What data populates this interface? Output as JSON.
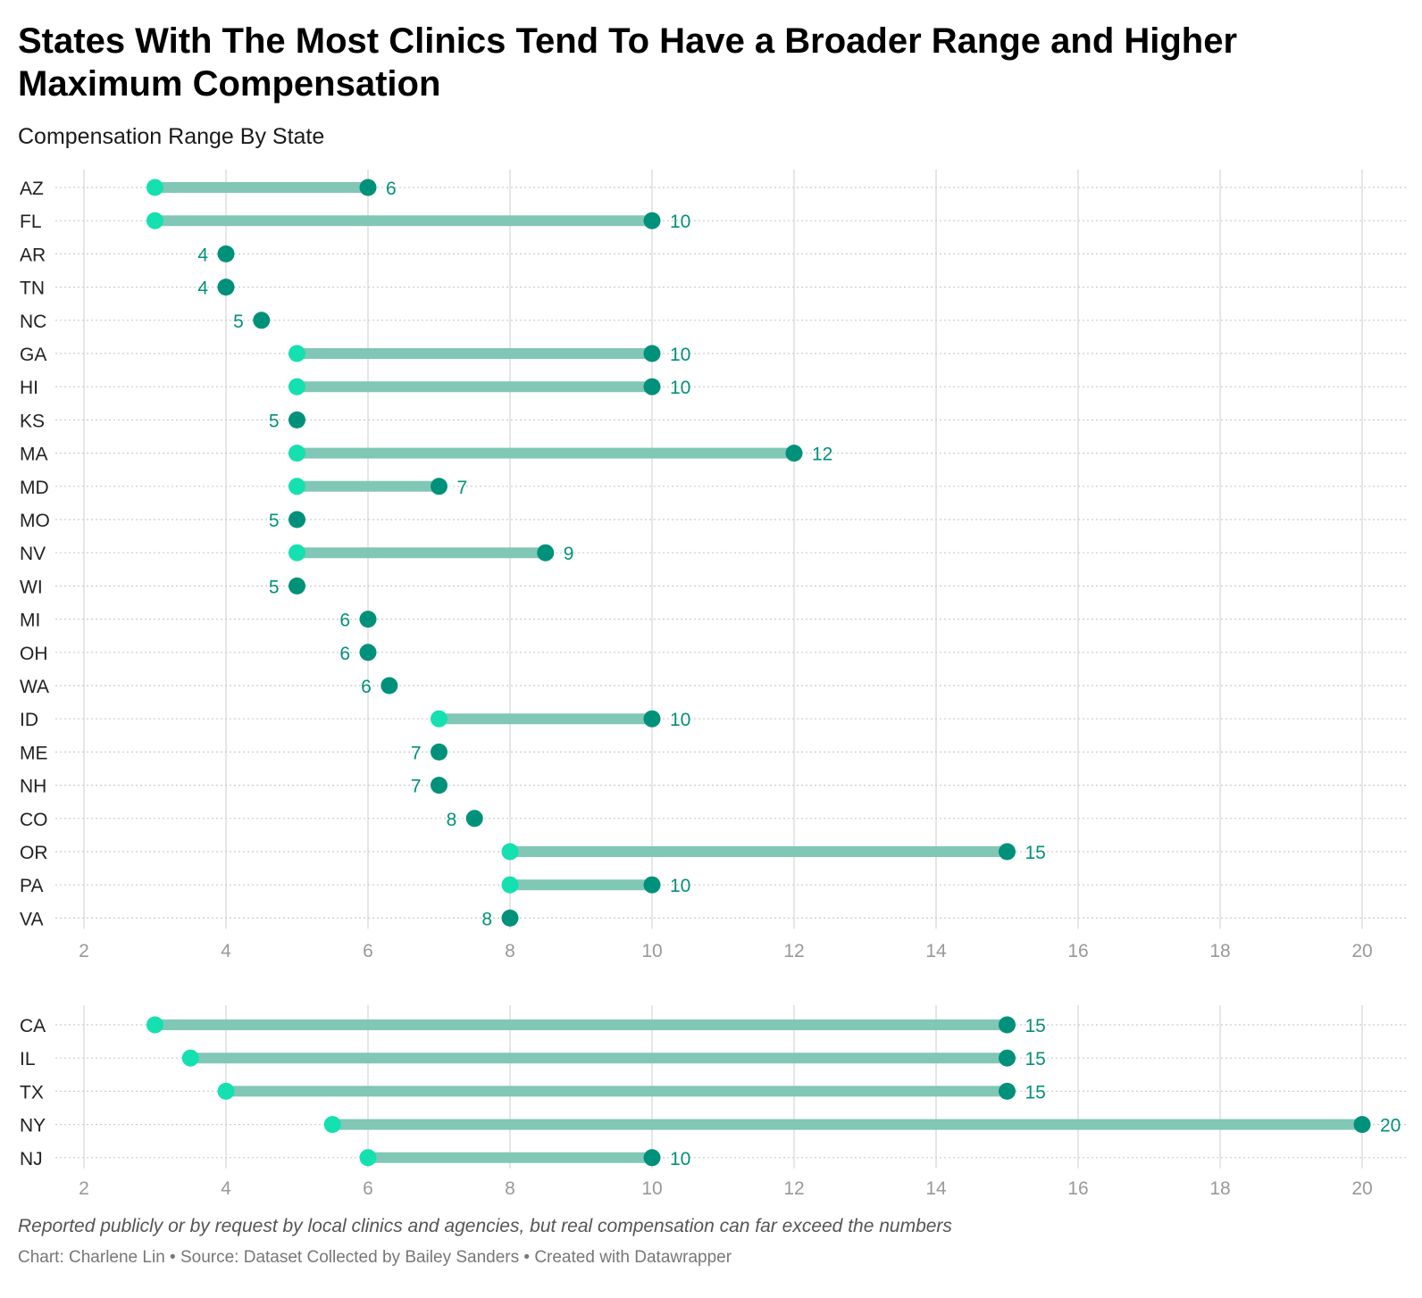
{
  "title": "States With The Most Clinics Tend To Have a Broader Range and Higher Maximum Compensation",
  "subtitle": "Compensation Range By State",
  "notes": "Reported publicly or by request by local clinics and agencies, but real compensation can far exceed the numbers",
  "credit": "Chart: Charlene Lin • Source: Dataset Collected by Bailey Sanders • Created with Datawrapper",
  "colors": {
    "min_dot": "#14e0b0",
    "max_dot": "#00917a",
    "range_bar": "#80c7b6",
    "value_label": "#00917a",
    "state_label": "#222222",
    "tick_label": "#999999",
    "gridline": "#dddddd",
    "row_dots": "#cccccc"
  },
  "chart_data": [
    {
      "type": "range",
      "xlim": [
        2,
        20
      ],
      "xticks": [
        2,
        4,
        6,
        8,
        10,
        12,
        14,
        16,
        18,
        20
      ],
      "grid": true,
      "rows": [
        {
          "label": "AZ",
          "min": 3,
          "max": 6,
          "value_label": "6",
          "label_side": "right"
        },
        {
          "label": "FL",
          "min": 3,
          "max": 10,
          "value_label": "10",
          "label_side": "right"
        },
        {
          "label": "AR",
          "min": 4,
          "max": 4,
          "value_label": "4",
          "label_side": "left"
        },
        {
          "label": "TN",
          "min": 4,
          "max": 4,
          "value_label": "4",
          "label_side": "left"
        },
        {
          "label": "NC",
          "min": 4.5,
          "max": 4.5,
          "value_label": "5",
          "label_side": "left"
        },
        {
          "label": "GA",
          "min": 5,
          "max": 10,
          "value_label": "10",
          "label_side": "right"
        },
        {
          "label": "HI",
          "min": 5,
          "max": 10,
          "value_label": "10",
          "label_side": "right"
        },
        {
          "label": "KS",
          "min": 5,
          "max": 5,
          "value_label": "5",
          "label_side": "left"
        },
        {
          "label": "MA",
          "min": 5,
          "max": 12,
          "value_label": "12",
          "label_side": "right"
        },
        {
          "label": "MD",
          "min": 5,
          "max": 7,
          "value_label": "7",
          "label_side": "right"
        },
        {
          "label": "MO",
          "min": 5,
          "max": 5,
          "value_label": "5",
          "label_side": "left"
        },
        {
          "label": "NV",
          "min": 5,
          "max": 8.5,
          "value_label": "9",
          "label_side": "right"
        },
        {
          "label": "WI",
          "min": 5,
          "max": 5,
          "value_label": "5",
          "label_side": "left"
        },
        {
          "label": "MI",
          "min": 6,
          "max": 6,
          "value_label": "6",
          "label_side": "left"
        },
        {
          "label": "OH",
          "min": 6,
          "max": 6,
          "value_label": "6",
          "label_side": "left"
        },
        {
          "label": "WA",
          "min": 6.3,
          "max": 6.3,
          "value_label": "6",
          "label_side": "left"
        },
        {
          "label": "ID",
          "min": 7,
          "max": 10,
          "value_label": "10",
          "label_side": "right"
        },
        {
          "label": "ME",
          "min": 7,
          "max": 7,
          "value_label": "7",
          "label_side": "left"
        },
        {
          "label": "NH",
          "min": 7,
          "max": 7,
          "value_label": "7",
          "label_side": "left"
        },
        {
          "label": "CO",
          "min": 7.5,
          "max": 7.5,
          "value_label": "8",
          "label_side": "left"
        },
        {
          "label": "OR",
          "min": 8,
          "max": 15,
          "value_label": "15",
          "label_side": "right"
        },
        {
          "label": "PA",
          "min": 8,
          "max": 10,
          "value_label": "10",
          "label_side": "right"
        },
        {
          "label": "VA",
          "min": 8,
          "max": 8,
          "value_label": "8",
          "label_side": "left"
        }
      ]
    },
    {
      "type": "range",
      "xlim": [
        2,
        20
      ],
      "xticks": [
        2,
        4,
        6,
        8,
        10,
        12,
        14,
        16,
        18,
        20
      ],
      "grid": true,
      "rows": [
        {
          "label": "CA",
          "min": 3,
          "max": 15,
          "value_label": "15",
          "label_side": "right"
        },
        {
          "label": "IL",
          "min": 3.5,
          "max": 15,
          "value_label": "15",
          "label_side": "right"
        },
        {
          "label": "TX",
          "min": 4,
          "max": 15,
          "value_label": "15",
          "label_side": "right"
        },
        {
          "label": "NY",
          "min": 5.5,
          "max": 20,
          "value_label": "20",
          "label_side": "right"
        },
        {
          "label": "NJ",
          "min": 6,
          "max": 10,
          "value_label": "10",
          "label_side": "right"
        }
      ]
    }
  ]
}
